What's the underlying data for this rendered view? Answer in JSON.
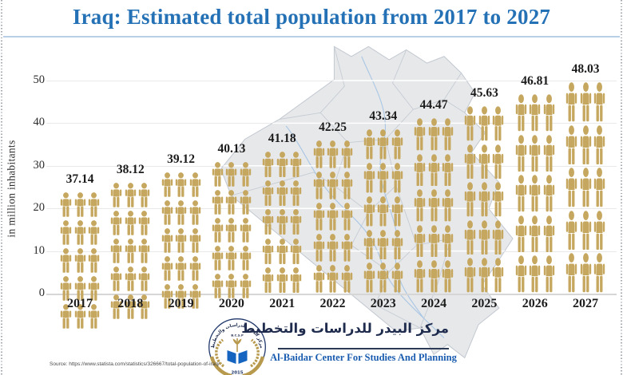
{
  "title": "Iraq: Estimated total population from 2017 to 2027",
  "chart_data": {
    "type": "bar",
    "subtype": "pictogram",
    "title": "Iraq: Estimated total population from 2017 to 2027",
    "categories": [
      "2017",
      "2018",
      "2019",
      "2020",
      "2021",
      "2022",
      "2023",
      "2024",
      "2025",
      "2026",
      "2027"
    ],
    "values": [
      37.14,
      38.12,
      39.12,
      40.13,
      41.18,
      42.25,
      43.34,
      44.47,
      45.63,
      46.81,
      48.03
    ],
    "value_labels": [
      "37.14",
      "38.12",
      "39.12",
      "40.13",
      "41.18",
      "42.25",
      "43.34",
      "44.47",
      "45.63",
      "46.81",
      "48.03"
    ],
    "xlabel": "",
    "ylabel": "in million inhabitants",
    "ylim": [
      0,
      50
    ],
    "yticks": [
      0,
      10,
      20,
      30,
      40,
      50
    ],
    "grid": true,
    "legend": false,
    "icon": "person-pictogram",
    "icons_per_row": 3,
    "rows_per_column": 5,
    "background": "iraq-map-silhouette"
  },
  "colors": {
    "title_blue": "#2571b6",
    "underline_blue": "#b9cfe7",
    "icon_gold": "#c6a75f",
    "value_label": "#1b1b1b",
    "axis_text": "#2b2b2b",
    "gridline": "#e9e9e9",
    "baseline": "#d6d6d6",
    "map_fill": "#e7e8ea",
    "map_border": "#c2c8d0",
    "river_blue": "#a9c6e4",
    "footer_navy": "#1e2b4d",
    "footer_blue": "#1a5caf"
  },
  "footer": {
    "org_name_ar": "مركز البيدر للدراسات والتخطيط",
    "org_name_en": "Al-Baidar Center For Studies And Planning",
    "logo": {
      "ring_text_ar": "مركز البيدر للدراسات والتخطيط",
      "abbr": "B.C.S.P",
      "year": "2015"
    },
    "source": "Source: https://www.statista.com/statistics/326667/total-population-of-iraq/"
  }
}
